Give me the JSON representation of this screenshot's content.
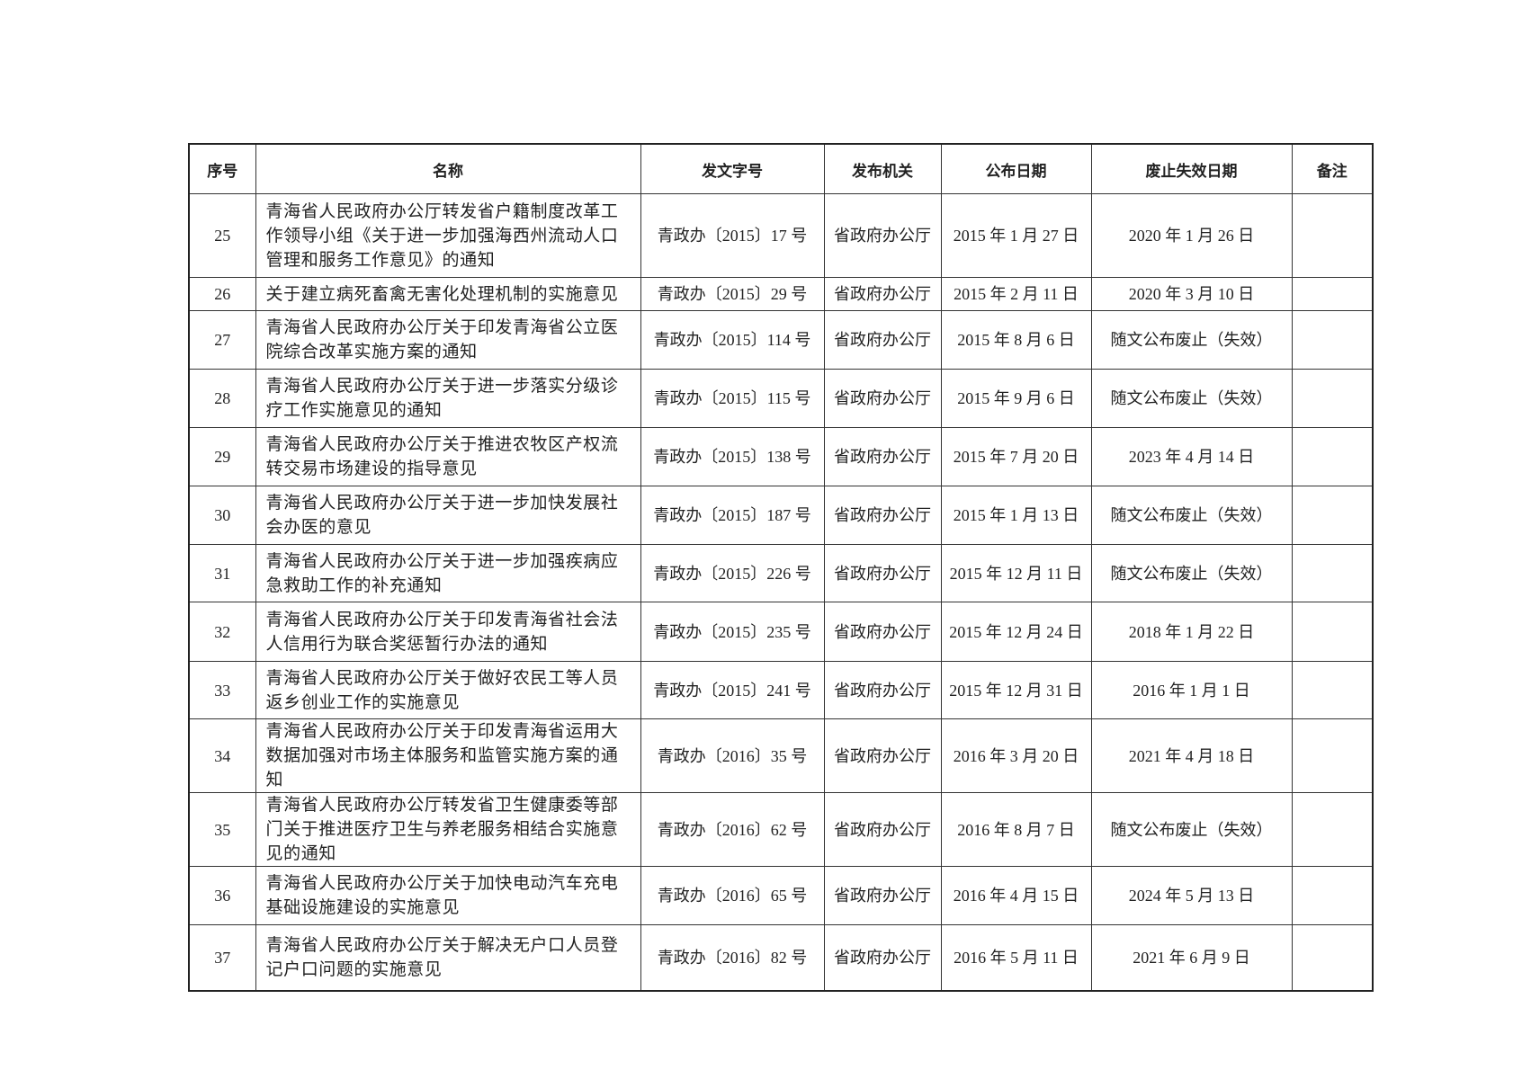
{
  "table": {
    "header": [
      "序号",
      "名称",
      "发文字号",
      "发布机关",
      "公布日期",
      "废止失效日期",
      "备注"
    ],
    "rows": [
      [
        "25",
        "青海省人民政府办公厅转发省户籍制度改革工作领导小组《关于进一步加强海西州流动人口管理和服务工作意见》的通知",
        "青政办〔2015〕17 号",
        "省政府办公厅",
        "2015 年 1 月 27 日",
        "2020 年 1 月 26 日"
      ],
      [
        "26",
        "关于建立病死畜禽无害化处理机制的实施意见",
        "青政办〔2015〕29 号",
        "省政府办公厅",
        "2015 年 2 月 11 日",
        "2020 年 3 月 10 日"
      ],
      [
        "27",
        "青海省人民政府办公厅关于印发青海省公立医院综合改革实施方案的通知",
        "青政办〔2015〕114 号",
        "省政府办公厅",
        "2015 年 8 月 6 日",
        "随文公布废止（失效）"
      ],
      [
        "28",
        "青海省人民政府办公厅关于进一步落实分级诊疗工作实施意见的通知",
        "青政办〔2015〕115 号",
        "省政府办公厅",
        "2015 年 9 月 6 日",
        "随文公布废止（失效）"
      ],
      [
        "29",
        "青海省人民政府办公厅关于推进农牧区产权流转交易市场建设的指导意见",
        "青政办〔2015〕138 号",
        "省政府办公厅",
        "2015 年 7 月 20 日",
        "2023 年 4 月 14 日"
      ],
      [
        "30",
        "青海省人民政府办公厅关于进一步加快发展社会办医的意见",
        "青政办〔2015〕187 号",
        "省政府办公厅",
        "2015 年 1 月 13 日",
        "随文公布废止（失效）"
      ],
      [
        "31",
        "青海省人民政府办公厅关于进一步加强疾病应急救助工作的补充通知",
        "青政办〔2015〕226 号",
        "省政府办公厅",
        "2015 年 12 月 11 日",
        "随文公布废止（失效）"
      ],
      [
        "32",
        "青海省人民政府办公厅关于印发青海省社会法人信用行为联合奖惩暂行办法的通知",
        "青政办〔2015〕235 号",
        "省政府办公厅",
        "2015 年 12 月 24 日",
        "2018 年 1 月 22 日"
      ],
      [
        "33",
        "青海省人民政府办公厅关于做好农民工等人员返乡创业工作的实施意见",
        "青政办〔2015〕241 号",
        "省政府办公厅",
        "2015 年 12 月 31 日",
        "2016 年 1 月 1 日"
      ],
      [
        "34",
        "青海省人民政府办公厅关于印发青海省运用大数据加强对市场主体服务和监管实施方案的通知",
        "青政办〔2016〕35 号",
        "省政府办公厅",
        "2016 年 3 月 20 日",
        "2021 年 4 月 18 日"
      ],
      [
        "35",
        "青海省人民政府办公厅转发省卫生健康委等部门关于推进医疗卫生与养老服务相结合实施意见的通知",
        "青政办〔2016〕62 号",
        "省政府办公厅",
        "2016 年 8 月 7 日",
        "随文公布废止（失效）"
      ],
      [
        "36",
        "青海省人民政府办公厅关于加快电动汽车充电基础设施建设的实施意见",
        "青政办〔2016〕65 号",
        "省政府办公厅",
        "2016 年 4 月 15 日",
        "2024 年 5 月 13 日"
      ],
      [
        "37",
        "青海省人民政府办公厅关于解决无户口人员登记户口问题的实施意见",
        "青政办〔2016〕82 号",
        "省政府办公厅",
        "2016 年 5 月 11 日",
        "2021 年 6 月 9 日"
      ]
    ]
  }
}
